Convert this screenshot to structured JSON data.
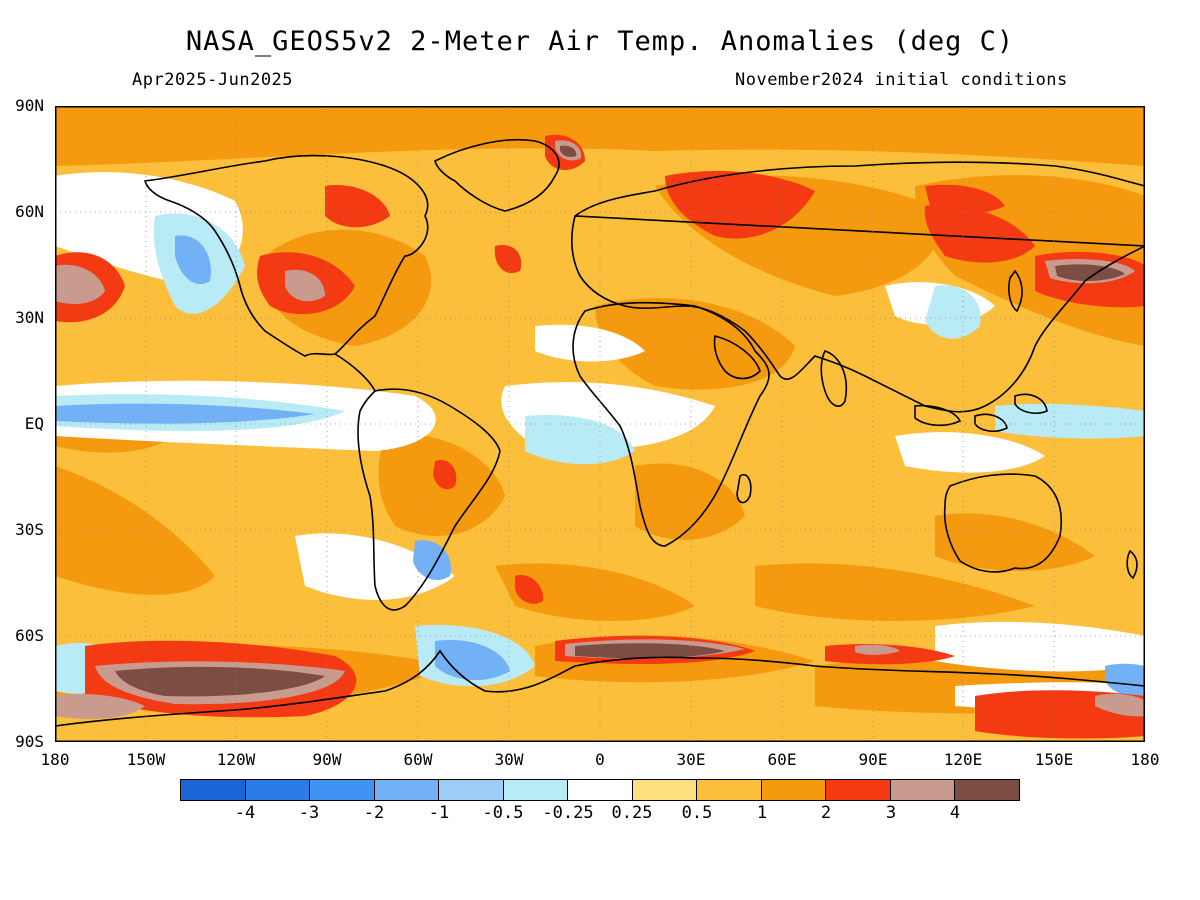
{
  "header": {
    "title": "NASA_GEOS5v2 2-Meter Air Temp. Anomalies (deg C)",
    "period": "Apr2025-Jun2025",
    "init": "November2024 initial conditions"
  },
  "axes": {
    "lat_labels": [
      "90N",
      "60N",
      "30N",
      "EQ",
      "30S",
      "60S",
      "90S"
    ],
    "lon_labels": [
      "180",
      "150W",
      "120W",
      "90W",
      "60W",
      "30W",
      "0",
      "30E",
      "60E",
      "90E",
      "120E",
      "150E",
      "180"
    ]
  },
  "legend": {
    "colors": [
      "#1a66d6",
      "#2a7ce8",
      "#3f93f2",
      "#72b1f5",
      "#9ccdf8",
      "#b9ebf7",
      "#ffffff",
      "#fde07d",
      "#fbbf3c",
      "#f59a0f",
      "#f43a12",
      "#c99a8e",
      "#7b4d43"
    ],
    "labels": [
      "-4",
      "-3",
      "-2",
      "-1",
      "-0.5",
      "-0.25",
      "0.25",
      "0.5",
      "1",
      "2",
      "3",
      "4"
    ]
  },
  "map_colors": {
    "ocean_base": "#fbbf3c",
    "land_outline": "#000000"
  }
}
